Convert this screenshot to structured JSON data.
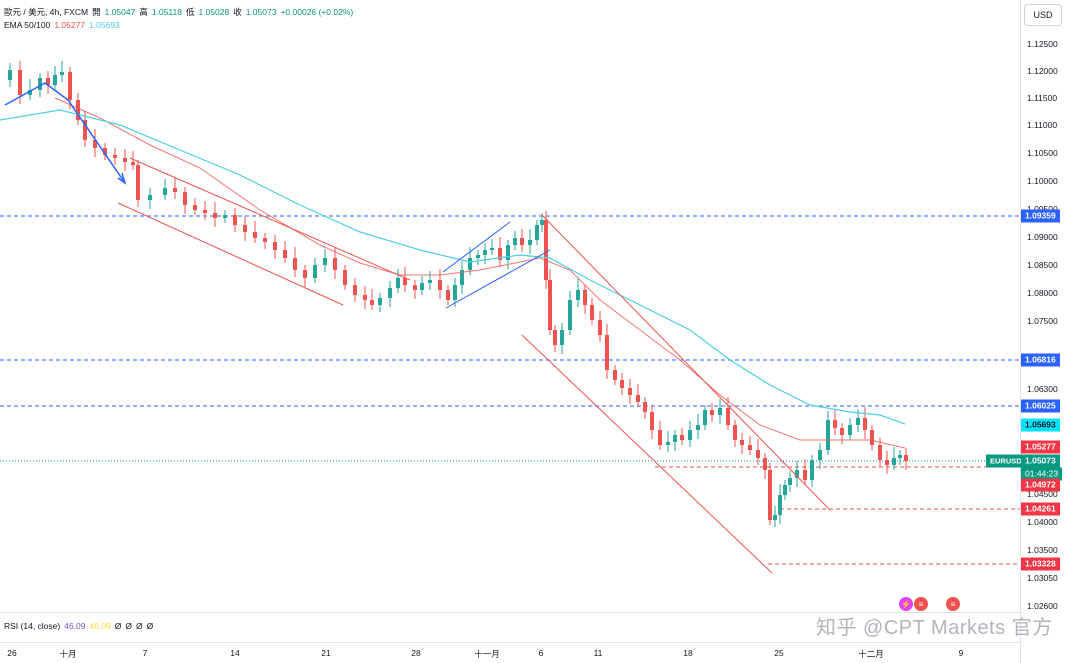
{
  "legend": {
    "symbol": "歐元 / 美元, 4h, FXCM",
    "open_label": "開",
    "open": "1.05047",
    "high_label": "高",
    "high": "1.05118",
    "low_label": "低",
    "low": "1.05028",
    "close_label": "收",
    "close": "1.05073",
    "change": "+0.00026 (+0.02%)",
    "ema_label": "EMA 50/100",
    "ema50": "1.05277",
    "ema100": "1.05693"
  },
  "currency_button": "USD",
  "price_axis": {
    "ticks": [
      "1.12500",
      "1.12000",
      "1.11500",
      "1.11000",
      "1.10500",
      "1.10000",
      "1.09500",
      "1.09000",
      "1.08500",
      "1.08000",
      "1.07500",
      "1.06300",
      "1.04500",
      "1.04000",
      "1.03500",
      "1.03050",
      "1.02600"
    ]
  },
  "price_labels": {
    "level1": "1.09359",
    "level2": "1.06816",
    "level3": "1.06025",
    "ema100": "1.05693",
    "ema50": "1.05277",
    "symbol_tag": "EURUSD",
    "current": "1.05073",
    "countdown": "01:44:23",
    "level4": "1.04972",
    "level5": "1.04261",
    "level6": "1.03328"
  },
  "time_axis": {
    "ticks": [
      "26",
      "十月",
      "7",
      "14",
      "21",
      "28",
      "十一月",
      "6",
      "11",
      "18",
      "25",
      "十二月",
      "9"
    ]
  },
  "rsi": {
    "label": "RSI (14, close)",
    "value1": "46.09",
    "value2": "46.09",
    "zeros": [
      "Ø",
      "Ø",
      "Ø",
      "Ø"
    ]
  },
  "watermark": "知乎 @CPT Markets 官方",
  "colors": {
    "up": "#26a69a",
    "down": "#ef5350",
    "ema50": "#ef5350",
    "ema100": "#4dd0e1",
    "hline": "#2962ff",
    "current": "#089981",
    "drawn_line": "#2962ff"
  }
}
